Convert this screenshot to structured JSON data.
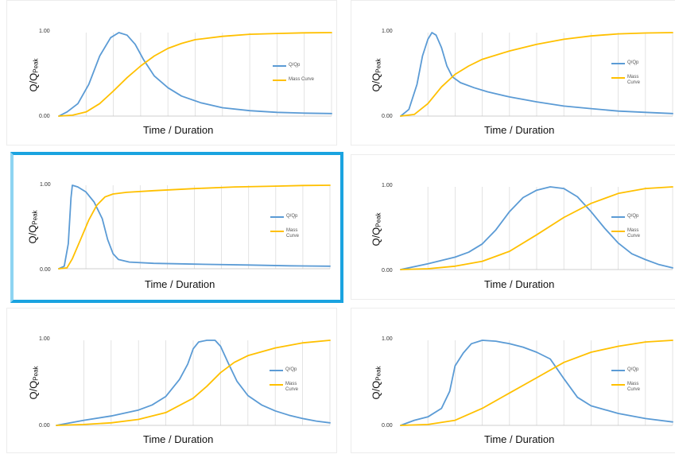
{
  "chart_data": [
    {
      "type": "line",
      "ylabel_main": "Q/Q",
      "ylabel_sub": "Peak",
      "xlabel": "Time / Duration",
      "ytick_top": "1.00",
      "ytick_bottom": "0.00",
      "ylim": [
        0,
        1
      ],
      "legend_position": "right",
      "series": [
        {
          "name": "Q/Qp",
          "color": "#5b9bd5",
          "points": [
            [
              0,
              0
            ],
            [
              0.03,
              0.05
            ],
            [
              0.07,
              0.15
            ],
            [
              0.11,
              0.38
            ],
            [
              0.15,
              0.72
            ],
            [
              0.19,
              0.94
            ],
            [
              0.22,
              1.0
            ],
            [
              0.25,
              0.97
            ],
            [
              0.28,
              0.86
            ],
            [
              0.31,
              0.68
            ],
            [
              0.35,
              0.48
            ],
            [
              0.4,
              0.34
            ],
            [
              0.45,
              0.24
            ],
            [
              0.52,
              0.16
            ],
            [
              0.6,
              0.1
            ],
            [
              0.7,
              0.065
            ],
            [
              0.8,
              0.045
            ],
            [
              0.9,
              0.035
            ],
            [
              1.0,
              0.03
            ]
          ]
        },
        {
          "name": "Mass Curve",
          "color": "#ffc000",
          "points": [
            [
              0,
              0
            ],
            [
              0.05,
              0.01
            ],
            [
              0.1,
              0.05
            ],
            [
              0.15,
              0.15
            ],
            [
              0.2,
              0.3
            ],
            [
              0.25,
              0.46
            ],
            [
              0.3,
              0.6
            ],
            [
              0.35,
              0.72
            ],
            [
              0.4,
              0.81
            ],
            [
              0.45,
              0.87
            ],
            [
              0.5,
              0.915
            ],
            [
              0.6,
              0.955
            ],
            [
              0.7,
              0.98
            ],
            [
              0.8,
              0.99
            ],
            [
              0.9,
              0.997
            ],
            [
              1.0,
              1.0
            ]
          ]
        }
      ]
    },
    {
      "type": "line",
      "ylabel_main": "Q/Q",
      "ylabel_sub": "Peak",
      "xlabel": "Time / Duration",
      "ytick_top": "1.00",
      "ytick_bottom": "0.00",
      "ylim": [
        0,
        1
      ],
      "legend_position": "right",
      "series": [
        {
          "name": "Q/Qp",
          "color": "#5b9bd5",
          "points": [
            [
              0,
              0
            ],
            [
              0.03,
              0.08
            ],
            [
              0.06,
              0.38
            ],
            [
              0.08,
              0.72
            ],
            [
              0.1,
              0.92
            ],
            [
              0.115,
              1.0
            ],
            [
              0.13,
              0.97
            ],
            [
              0.15,
              0.82
            ],
            [
              0.17,
              0.6
            ],
            [
              0.19,
              0.47
            ],
            [
              0.22,
              0.4
            ],
            [
              0.27,
              0.34
            ],
            [
              0.32,
              0.29
            ],
            [
              0.4,
              0.23
            ],
            [
              0.5,
              0.17
            ],
            [
              0.6,
              0.12
            ],
            [
              0.7,
              0.09
            ],
            [
              0.8,
              0.06
            ],
            [
              0.9,
              0.045
            ],
            [
              1.0,
              0.03
            ]
          ]
        },
        {
          "name": "Mass Curve",
          "color": "#ffc000",
          "points": [
            [
              0,
              0
            ],
            [
              0.05,
              0.02
            ],
            [
              0.1,
              0.15
            ],
            [
              0.15,
              0.35
            ],
            [
              0.2,
              0.5
            ],
            [
              0.25,
              0.6
            ],
            [
              0.3,
              0.68
            ],
            [
              0.4,
              0.78
            ],
            [
              0.5,
              0.86
            ],
            [
              0.6,
              0.92
            ],
            [
              0.7,
              0.96
            ],
            [
              0.8,
              0.985
            ],
            [
              0.9,
              0.995
            ],
            [
              1.0,
              1.0
            ]
          ]
        }
      ]
    },
    {
      "type": "line",
      "ylabel_main": "Q/Q",
      "ylabel_sub": "Peak",
      "xlabel": "Time / Duration",
      "ytick_top": "1.00",
      "ytick_bottom": "0.00",
      "ylim": [
        0,
        1
      ],
      "legend_position": "right",
      "series": [
        {
          "name": "Q/Qp",
          "color": "#5b9bd5",
          "points": [
            [
              0,
              0
            ],
            [
              0.02,
              0.03
            ],
            [
              0.035,
              0.3
            ],
            [
              0.045,
              0.85
            ],
            [
              0.05,
              1.0
            ],
            [
              0.07,
              0.98
            ],
            [
              0.1,
              0.92
            ],
            [
              0.13,
              0.8
            ],
            [
              0.16,
              0.6
            ],
            [
              0.18,
              0.35
            ],
            [
              0.2,
              0.18
            ],
            [
              0.22,
              0.11
            ],
            [
              0.26,
              0.08
            ],
            [
              0.35,
              0.065
            ],
            [
              0.5,
              0.055
            ],
            [
              0.7,
              0.045
            ],
            [
              0.85,
              0.035
            ],
            [
              1.0,
              0.03
            ]
          ]
        },
        {
          "name": "Mass Curve",
          "color": "#ffc000",
          "points": [
            [
              0,
              0
            ],
            [
              0.03,
              0.01
            ],
            [
              0.05,
              0.12
            ],
            [
              0.08,
              0.35
            ],
            [
              0.11,
              0.58
            ],
            [
              0.14,
              0.76
            ],
            [
              0.17,
              0.86
            ],
            [
              0.2,
              0.895
            ],
            [
              0.25,
              0.915
            ],
            [
              0.35,
              0.935
            ],
            [
              0.5,
              0.96
            ],
            [
              0.65,
              0.98
            ],
            [
              0.8,
              0.99
            ],
            [
              0.9,
              0.997
            ],
            [
              1.0,
              1.0
            ]
          ]
        }
      ]
    },
    {
      "type": "line",
      "ylabel_main": "Q/Q",
      "ylabel_sub": "Peak",
      "xlabel": "Time / Duration",
      "ytick_top": "1.00",
      "ytick_bottom": "0.00",
      "ylim": [
        0,
        1
      ],
      "legend_position": "right",
      "series": [
        {
          "name": "Q/Qp",
          "color": "#5b9bd5",
          "points": [
            [
              0,
              0
            ],
            [
              0.1,
              0.07
            ],
            [
              0.2,
              0.15
            ],
            [
              0.25,
              0.21
            ],
            [
              0.3,
              0.31
            ],
            [
              0.35,
              0.48
            ],
            [
              0.4,
              0.7
            ],
            [
              0.45,
              0.87
            ],
            [
              0.5,
              0.96
            ],
            [
              0.55,
              1.0
            ],
            [
              0.6,
              0.98
            ],
            [
              0.65,
              0.88
            ],
            [
              0.7,
              0.7
            ],
            [
              0.75,
              0.5
            ],
            [
              0.8,
              0.32
            ],
            [
              0.85,
              0.19
            ],
            [
              0.9,
              0.12
            ],
            [
              0.95,
              0.06
            ],
            [
              1.0,
              0.02
            ]
          ]
        },
        {
          "name": "Mass Curve",
          "color": "#ffc000",
          "points": [
            [
              0,
              0
            ],
            [
              0.1,
              0.01
            ],
            [
              0.2,
              0.04
            ],
            [
              0.3,
              0.1
            ],
            [
              0.4,
              0.22
            ],
            [
              0.5,
              0.42
            ],
            [
              0.6,
              0.63
            ],
            [
              0.7,
              0.8
            ],
            [
              0.8,
              0.92
            ],
            [
              0.9,
              0.98
            ],
            [
              1.0,
              1.0
            ]
          ]
        }
      ]
    },
    {
      "type": "line",
      "ylabel_main": "Q/Q",
      "ylabel_sub": "Peak",
      "xlabel": "Time / Duration",
      "ytick_top": "1.00",
      "ytick_bottom": "0.00",
      "ylim": [
        0,
        1
      ],
      "legend_position": "right",
      "series": [
        {
          "name": "Q/Qp",
          "color": "#5b9bd5",
          "points": [
            [
              0,
              0
            ],
            [
              0.1,
              0.06
            ],
            [
              0.2,
              0.11
            ],
            [
              0.3,
              0.18
            ],
            [
              0.35,
              0.24
            ],
            [
              0.4,
              0.34
            ],
            [
              0.45,
              0.54
            ],
            [
              0.48,
              0.72
            ],
            [
              0.5,
              0.9
            ],
            [
              0.52,
              0.98
            ],
            [
              0.55,
              1.0
            ],
            [
              0.58,
              1.0
            ],
            [
              0.6,
              0.93
            ],
            [
              0.63,
              0.72
            ],
            [
              0.66,
              0.52
            ],
            [
              0.7,
              0.35
            ],
            [
              0.75,
              0.24
            ],
            [
              0.8,
              0.17
            ],
            [
              0.85,
              0.12
            ],
            [
              0.9,
              0.08
            ],
            [
              0.95,
              0.05
            ],
            [
              1.0,
              0.03
            ]
          ]
        },
        {
          "name": "Mass Curve",
          "color": "#ffc000",
          "points": [
            [
              0,
              0
            ],
            [
              0.1,
              0.01
            ],
            [
              0.2,
              0.03
            ],
            [
              0.3,
              0.07
            ],
            [
              0.4,
              0.15
            ],
            [
              0.5,
              0.32
            ],
            [
              0.55,
              0.46
            ],
            [
              0.6,
              0.62
            ],
            [
              0.65,
              0.74
            ],
            [
              0.7,
              0.82
            ],
            [
              0.8,
              0.91
            ],
            [
              0.9,
              0.97
            ],
            [
              1.0,
              1.0
            ]
          ]
        }
      ]
    },
    {
      "type": "line",
      "ylabel_main": "Q/Q",
      "ylabel_sub": "Peak",
      "xlabel": "Time / Duration",
      "ytick_top": "1.00",
      "ytick_bottom": "0.00",
      "ylim": [
        0,
        1
      ],
      "legend_position": "right",
      "series": [
        {
          "name": "Q/Qp",
          "color": "#5b9bd5",
          "points": [
            [
              0,
              0
            ],
            [
              0.05,
              0.06
            ],
            [
              0.1,
              0.1
            ],
            [
              0.15,
              0.2
            ],
            [
              0.18,
              0.4
            ],
            [
              0.2,
              0.7
            ],
            [
              0.23,
              0.85
            ],
            [
              0.26,
              0.96
            ],
            [
              0.3,
              1.0
            ],
            [
              0.35,
              0.99
            ],
            [
              0.4,
              0.96
            ],
            [
              0.45,
              0.92
            ],
            [
              0.5,
              0.86
            ],
            [
              0.55,
              0.78
            ],
            [
              0.6,
              0.55
            ],
            [
              0.65,
              0.33
            ],
            [
              0.7,
              0.23
            ],
            [
              0.8,
              0.14
            ],
            [
              0.9,
              0.08
            ],
            [
              1.0,
              0.04
            ]
          ]
        },
        {
          "name": "Mass Curve",
          "color": "#ffc000",
          "points": [
            [
              0,
              0
            ],
            [
              0.1,
              0.01
            ],
            [
              0.2,
              0.06
            ],
            [
              0.3,
              0.2
            ],
            [
              0.4,
              0.38
            ],
            [
              0.5,
              0.56
            ],
            [
              0.6,
              0.74
            ],
            [
              0.7,
              0.86
            ],
            [
              0.8,
              0.93
            ],
            [
              0.9,
              0.98
            ],
            [
              1.0,
              1.0
            ]
          ]
        }
      ]
    }
  ]
}
